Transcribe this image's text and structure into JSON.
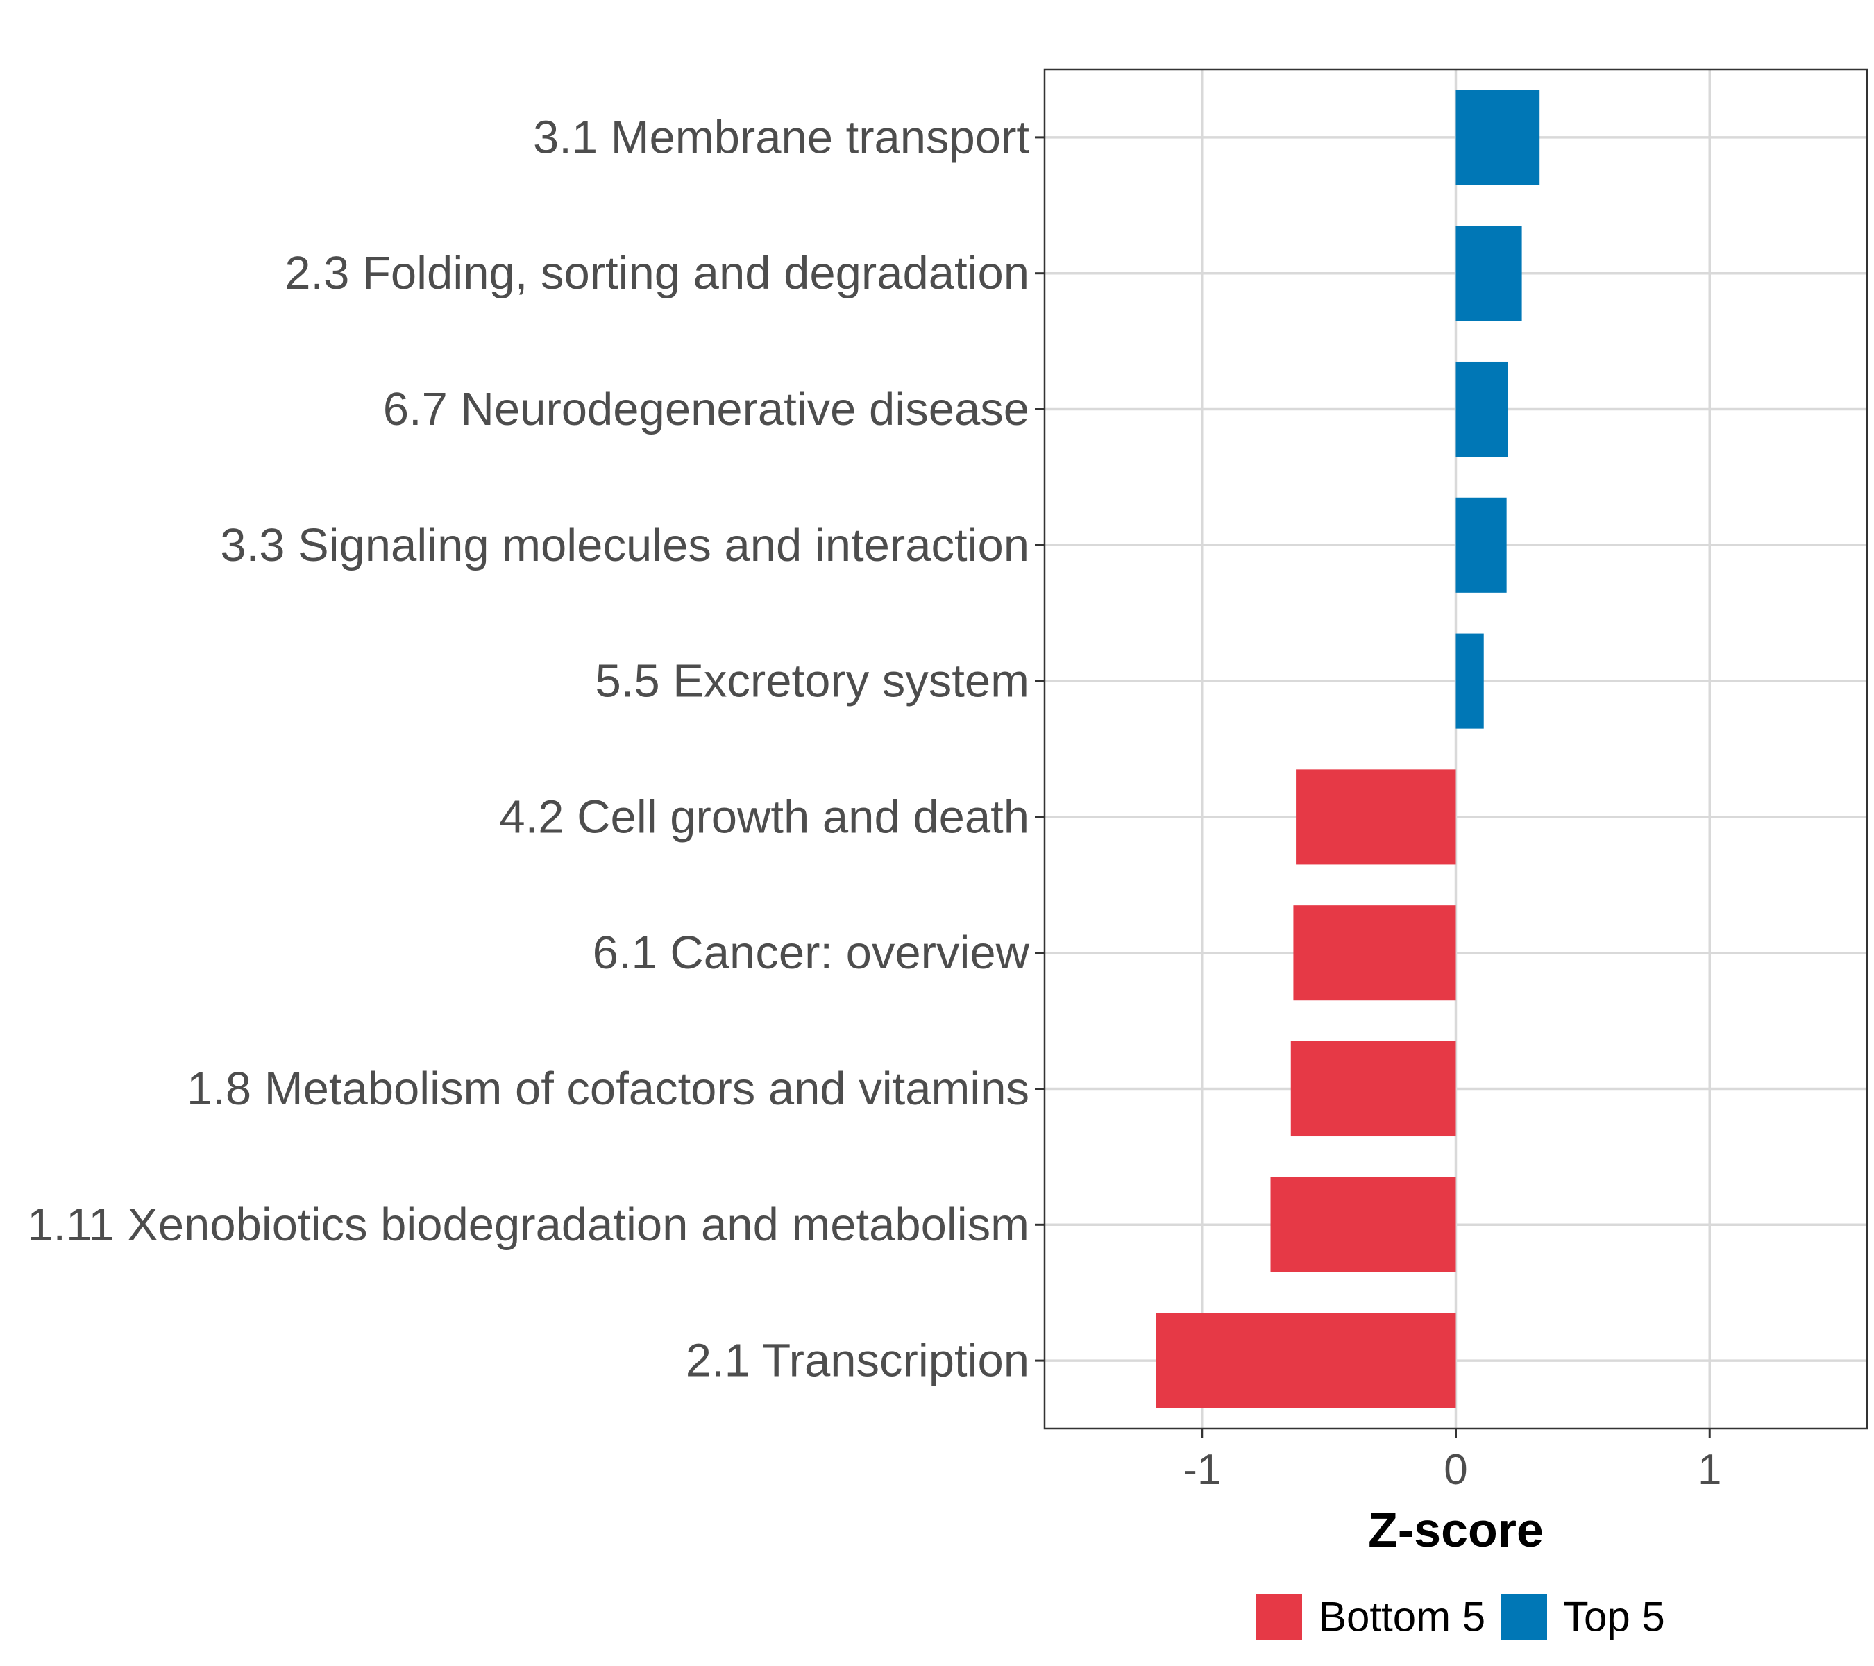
{
  "chart_data": {
    "type": "bar",
    "orientation": "horizontal",
    "title": "",
    "xlabel": "Z-score",
    "ylabel": "",
    "xlim": [
      -1.62,
      1.62
    ],
    "xticks": [
      {
        "value": -1,
        "label": "-1"
      },
      {
        "value": 0,
        "label": "0"
      },
      {
        "value": 1,
        "label": "1"
      }
    ],
    "grid": true,
    "legend_position": "bottom",
    "categories": [
      "3.1 Membrane transport",
      "2.3 Folding, sorting and degradation",
      "6.7 Neurodegenerative disease",
      "3.3 Signaling molecules and interaction",
      "5.5 Excretory system",
      "4.2 Cell growth and death",
      "6.1 Cancer: overview",
      "1.8 Metabolism of cofactors and vitamins",
      "1.11 Xenobiotics biodegradation and metabolism",
      "2.1 Transcription"
    ],
    "values": [
      0.33,
      0.26,
      0.205,
      0.2,
      0.11,
      -0.63,
      -0.64,
      -0.65,
      -0.73,
      -1.18
    ],
    "groups": [
      "Top 5",
      "Top 5",
      "Top 5",
      "Top 5",
      "Top 5",
      "Bottom 5",
      "Bottom 5",
      "Bottom 5",
      "Bottom 5",
      "Bottom 5"
    ],
    "legend": [
      {
        "name": "Bottom 5",
        "color": "#e63946"
      },
      {
        "name": "Top 5",
        "color": "#0077b6"
      }
    ]
  }
}
